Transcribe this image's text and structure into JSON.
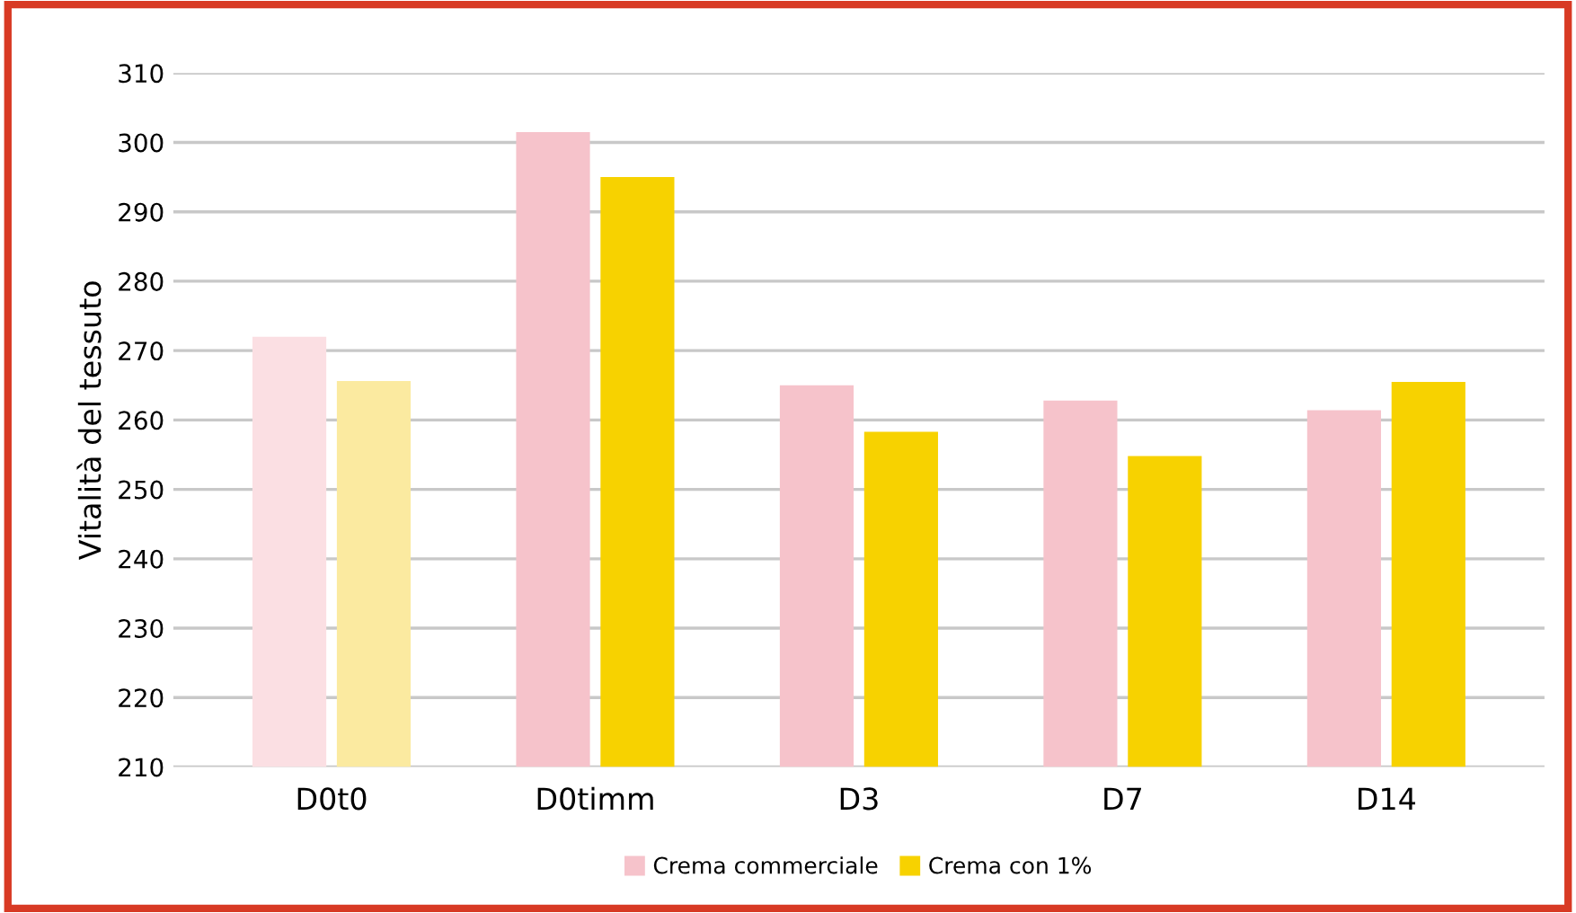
{
  "chart_data": {
    "type": "bar",
    "ylabel": "Vitalità del tessuto",
    "categories": [
      "D0t0",
      "D0timm",
      "D3",
      "D7",
      "D14"
    ],
    "series": [
      {
        "name": "Crema commerciale",
        "color": "#f6c3cb",
        "colors": [
          "#fbdfe3",
          "#f6c3cb",
          "#f6c3cb",
          "#f6c3cb",
          "#f6c3cb"
        ],
        "values": [
          272,
          301.5,
          265,
          262.8,
          261.4
        ]
      },
      {
        "name": "Crema con 1%",
        "color": "#f7d200",
        "colors": [
          "#fbeaa0",
          "#f7d200",
          "#f7d200",
          "#f7d200",
          "#f7d200"
        ],
        "values": [
          265.6,
          295,
          258.3,
          254.8,
          265.5
        ]
      }
    ],
    "ylim": [
      210,
      310
    ],
    "yticks": [
      210,
      220,
      230,
      240,
      250,
      260,
      270,
      280,
      290,
      300,
      310
    ],
    "grid": "y",
    "legend": "bottom"
  }
}
